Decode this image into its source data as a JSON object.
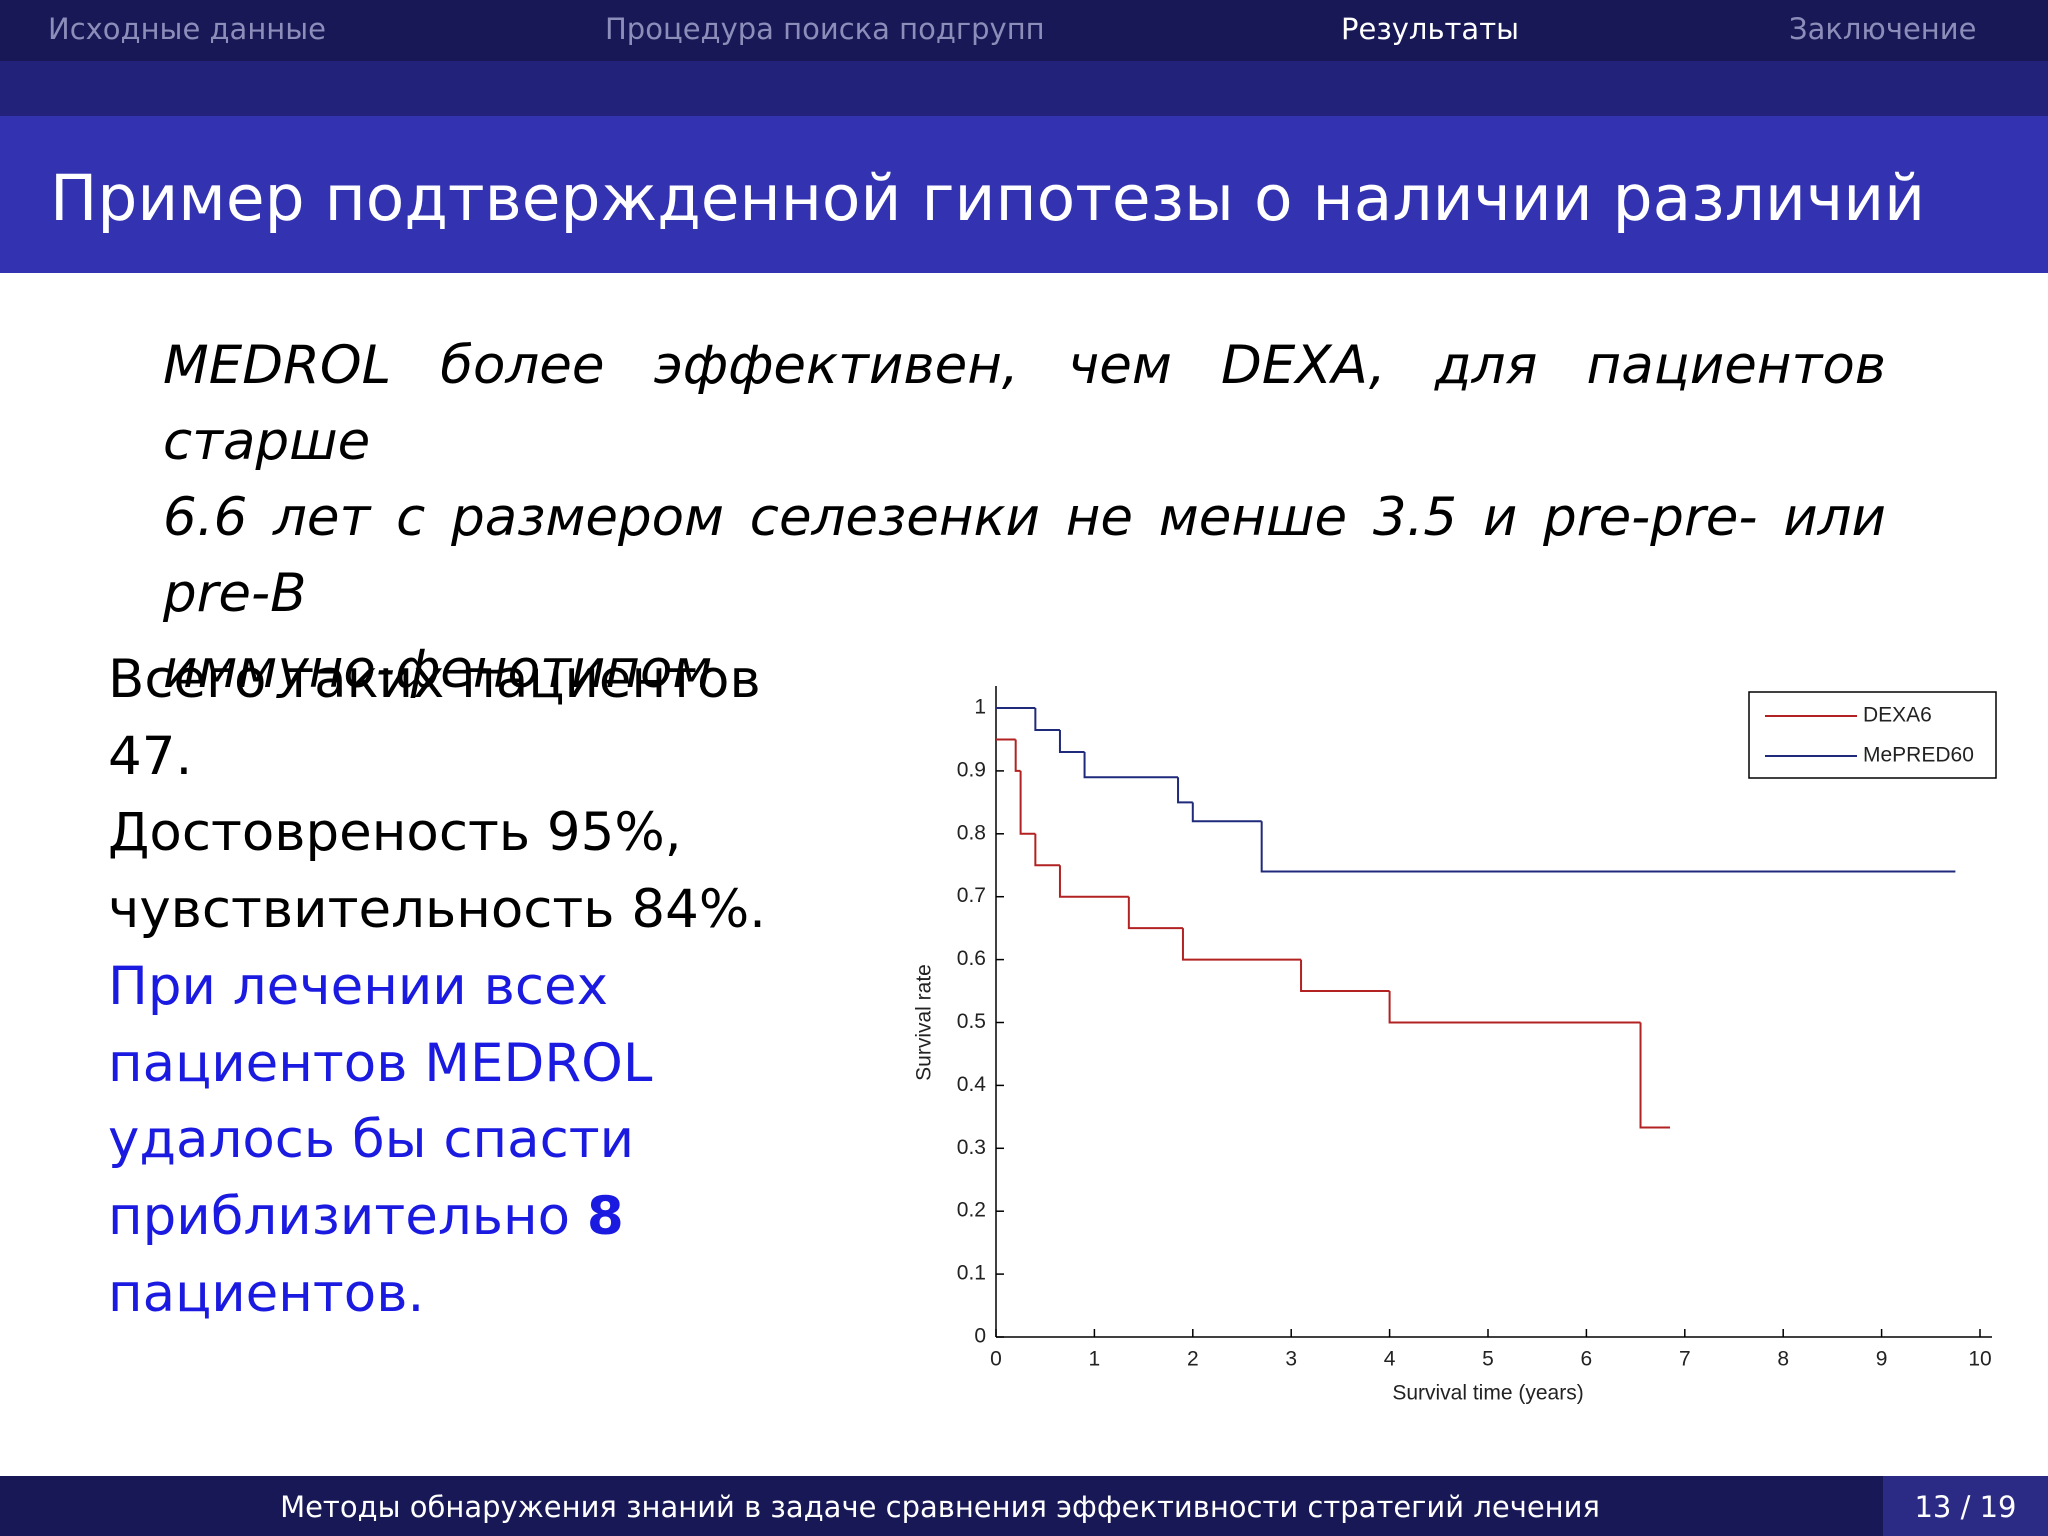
{
  "nav": {
    "items": [
      "Исходные данные",
      "Процедура поиска подгрупп",
      "Результаты",
      "Заключение"
    ],
    "active": 2
  },
  "title": "Пример подтвержденной гипотезы о наличии различий",
  "statement": {
    "lines": [
      "MEDROL более эффективен, чем DEXA, для пациентов старше",
      "6.6 лет с размером селезенки не менше 3.5 и pre-pre- или pre-B",
      "иммуно-фенотипом"
    ]
  },
  "summary": {
    "lines": [
      "Всего таких пациентов",
      "47.",
      "Достовреность 95%,",
      "чувствительность 84%."
    ]
  },
  "highlight": {
    "lines": [
      "При лечении всех",
      "пациентов MEDROL",
      "удалось бы спасти"
    ],
    "emphasis_prefix": "приблизительно",
    "emphasis": "8",
    "last_line": "пациентов."
  },
  "footer": {
    "title": "Методы обнаружения знаний в задаче сравнения эффективности стратегий лечения",
    "page": "13 / 19"
  },
  "chart_data": {
    "type": "step",
    "x_label": "Survival time (years)",
    "y_label": "Survival rate",
    "xlim": [
      0,
      10
    ],
    "xticks": [
      0,
      1,
      2,
      3,
      4,
      5,
      6,
      7,
      8,
      9,
      10
    ],
    "ylim": [
      0,
      1
    ],
    "yticks": [
      0,
      0.1,
      0.2,
      0.3,
      0.4,
      0.5,
      0.6,
      0.7,
      0.8,
      0.9,
      1
    ],
    "legend": "upper right",
    "series": [
      {
        "name": "DEXA6",
        "color": "#b22222",
        "x": [
          0,
          0.2,
          0.25,
          0.4,
          0.65,
          1.35,
          1.9,
          3.1,
          4.0,
          6.55,
          6.85
        ],
        "values": [
          0.95,
          0.9,
          0.8,
          0.75,
          0.7,
          0.65,
          0.6,
          0.55,
          0.5,
          0.333,
          0.333
        ]
      },
      {
        "name": "MePRED60",
        "color": "#1f2a7a",
        "x": [
          0,
          0.4,
          0.65,
          0.9,
          1.85,
          2.0,
          2.7,
          9.75
        ],
        "values": [
          1,
          0.965,
          0.93,
          0.89,
          0.85,
          0.82,
          0.74,
          0.74
        ]
      }
    ]
  }
}
